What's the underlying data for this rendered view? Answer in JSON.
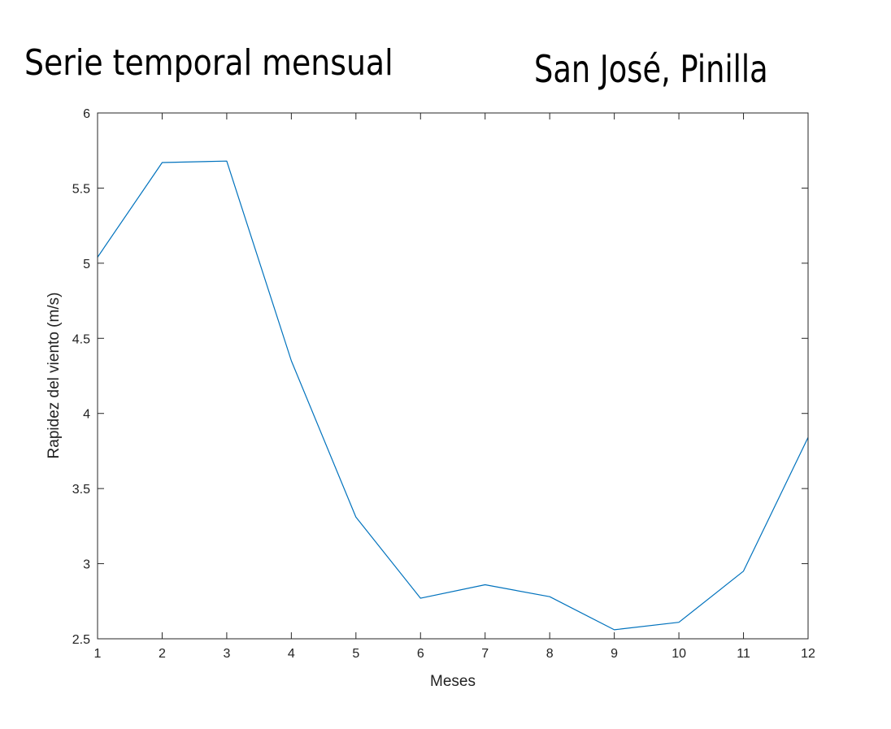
{
  "titles": {
    "left": "Serie temporal mensual",
    "right": "San José, Pinilla"
  },
  "chart_data": {
    "type": "line",
    "xlabel": "Meses",
    "ylabel": "Rapidez del viento (m/s)",
    "xlim": [
      1,
      12
    ],
    "ylim": [
      2.5,
      6
    ],
    "xticks": [
      1,
      2,
      3,
      4,
      5,
      6,
      7,
      8,
      9,
      10,
      11,
      12
    ],
    "yticks": [
      2.5,
      3,
      3.5,
      4,
      4.5,
      5,
      5.5,
      6
    ],
    "grid": false,
    "series": [
      {
        "color": "#0072bd",
        "x": [
          1,
          2,
          3,
          4,
          5,
          6,
          7,
          8,
          9,
          10,
          11,
          12
        ],
        "values": [
          5.04,
          5.67,
          5.68,
          4.35,
          3.31,
          2.77,
          2.86,
          2.78,
          2.56,
          2.61,
          2.95,
          3.84
        ]
      }
    ]
  }
}
